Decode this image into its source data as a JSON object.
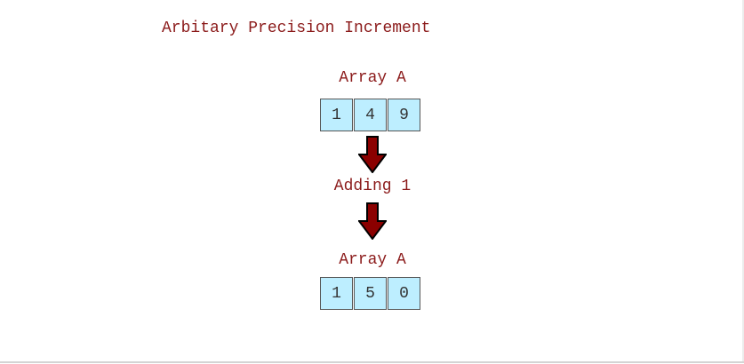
{
  "title": "Arbitary Precision Increment",
  "input_array": {
    "label": "Array A",
    "cells": [
      "1",
      "4",
      "9"
    ]
  },
  "operation": {
    "label": "Adding 1"
  },
  "output_array": {
    "label": "Array A",
    "cells": [
      "1",
      "5",
      "0"
    ]
  },
  "colors": {
    "text": "#8b1a1a",
    "cell_fill": "#bdeeff",
    "arrow_fill": "#8b0000"
  }
}
